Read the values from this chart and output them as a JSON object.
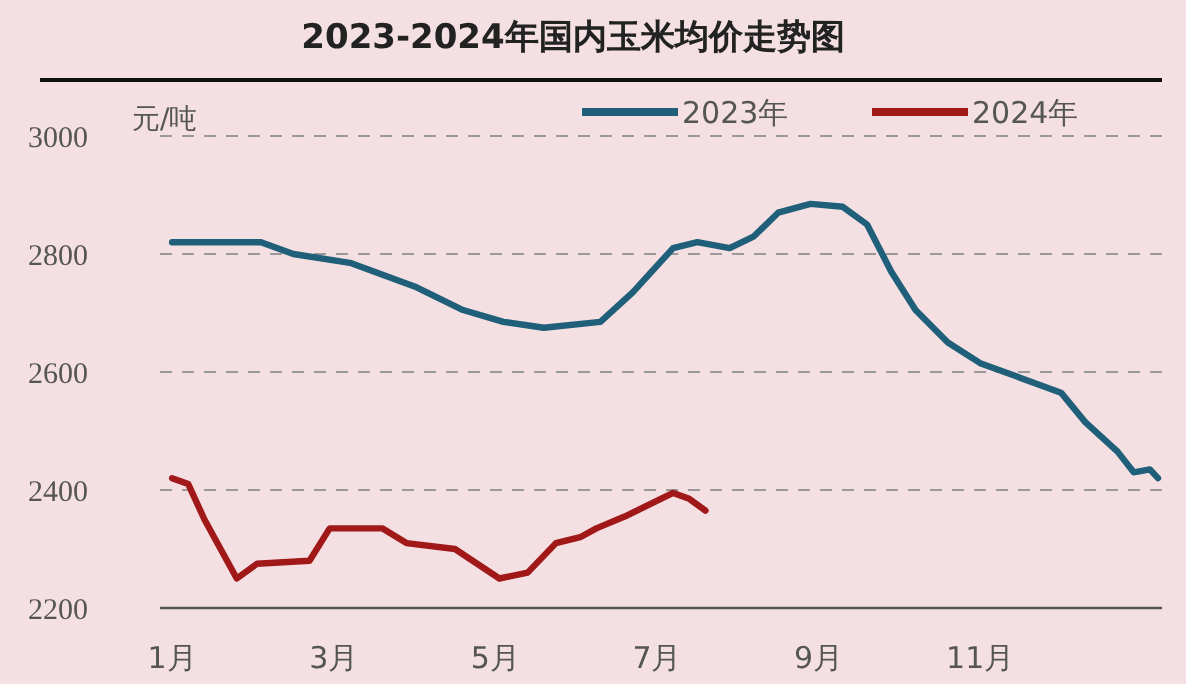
{
  "chart_data": {
    "type": "line",
    "title": "2023-2024年国内玉米均价走势图",
    "ylabel": "元/吨",
    "xlim": [
      0.85,
      13.25
    ],
    "xticks": [
      {
        "value": 1,
        "label": "1月"
      },
      {
        "value": 3,
        "label": "3月"
      },
      {
        "value": 5,
        "label": "5月"
      },
      {
        "value": 7,
        "label": "7月"
      },
      {
        "value": 9,
        "label": "9月"
      },
      {
        "value": 11,
        "label": "11月"
      }
    ],
    "ylim": [
      2200,
      3000
    ],
    "yticks": [
      2200,
      2400,
      2600,
      2800,
      3000
    ],
    "grid": "y",
    "legend": "top right",
    "marker": "none",
    "line_style": "solid",
    "series": [
      {
        "name": "2023年",
        "color": "#1f5f7a",
        "x": [
          1,
          2.1,
          2.5,
          3.2,
          4,
          4.6,
          5.1,
          5.6,
          6.3,
          6.7,
          7.2,
          7.5,
          7.9,
          8.2,
          8.5,
          8.9,
          9.3,
          9.6,
          9.9,
          10.2,
          10.6,
          11,
          11.5,
          12,
          12.3,
          12.7,
          12.9,
          13.1,
          13.2
        ],
        "values": [
          2820,
          2820,
          2800,
          2785,
          2745,
          2705,
          2685,
          2675,
          2685,
          2735,
          2810,
          2820,
          2810,
          2830,
          2870,
          2885,
          2880,
          2850,
          2770,
          2705,
          2650,
          2615,
          2590,
          2565,
          2515,
          2465,
          2430,
          2435,
          2420
        ]
      },
      {
        "name": "2024年",
        "color": "#a01818",
        "x": [
          1,
          1.2,
          1.4,
          1.6,
          1.8,
          2.05,
          2.7,
          2.95,
          3.6,
          3.9,
          4.5,
          5.05,
          5.4,
          5.75,
          6.05,
          6.25,
          6.6,
          7.2,
          7.4,
          7.6
        ],
        "values": [
          2420,
          2410,
          2350,
          2300,
          2250,
          2275,
          2280,
          2335,
          2335,
          2310,
          2300,
          2250,
          2260,
          2310,
          2320,
          2335,
          2355,
          2395,
          2385,
          2365
        ]
      }
    ]
  }
}
